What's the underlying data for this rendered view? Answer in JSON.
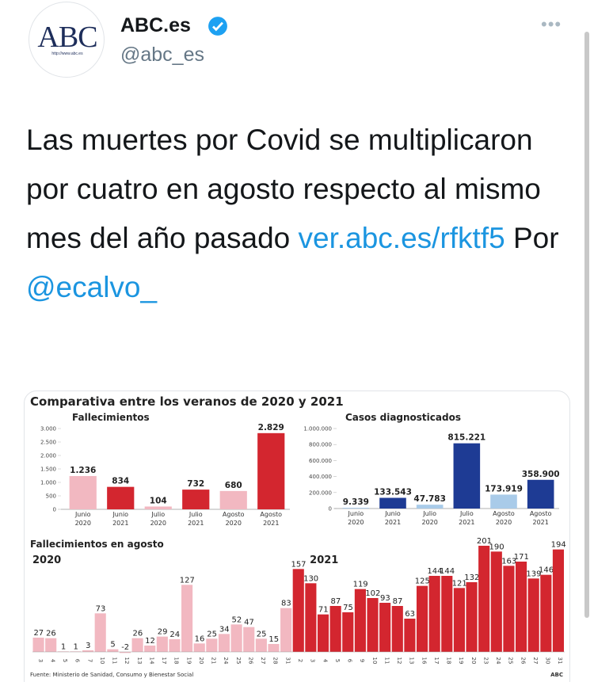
{
  "tweet": {
    "avatar_text": "ABC",
    "avatar_url": "http://www.abc.es",
    "name": "ABC.es",
    "handle": "@abc_es",
    "text": [
      "Las muertes por Covid se multiplicaron por cuatro en agosto respecto al mismo mes del año pasado ",
      "ver.abc.es/rfktf5",
      " Por ",
      "@ecalvo_"
    ]
  },
  "figure": {
    "title": "Comparativa entre los veranos de 2020 y 2021",
    "source": "Fuente: Ministerio de Sanidad, Consumo y Bienestar Social",
    "credit": "ABC"
  },
  "chart_data": [
    {
      "type": "bar",
      "title": "Fallecimientos",
      "categories": [
        "Junio 2020",
        "Junio 2021",
        "Julio 2020",
        "Julio 2021",
        "Agosto 2020",
        "Agosto 2021"
      ],
      "values": [
        1236,
        834,
        104,
        732,
        680,
        2829
      ],
      "value_labels": [
        "1.236",
        "834",
        "104",
        "732",
        "680",
        "2.829"
      ],
      "colors": [
        "#f2b8c1",
        "#d3262f",
        "#f2b8c1",
        "#d3262f",
        "#f2b8c1",
        "#d3262f"
      ],
      "ylim": [
        0,
        3000
      ],
      "yticks": [
        0,
        500,
        {
          "value": 1000,
          "label": "1.000"
        },
        {
          "value": 1500,
          "label": "1.500"
        },
        {
          "value": 2000,
          "label": "2.000"
        },
        {
          "value": 2500,
          "label": "2.500"
        },
        {
          "value": 3000,
          "label": "3.000"
        }
      ]
    },
    {
      "type": "bar",
      "title": "Casos diagnosticados",
      "categories": [
        "Junio 2020",
        "Junio 2021",
        "Julio 2020",
        "Julio 2021",
        "Agosto 2020",
        "Agosto 2021"
      ],
      "values": [
        9339,
        133543,
        47783,
        815221,
        173919,
        358900
      ],
      "value_labels": [
        "9.339",
        "133.543",
        "47.783",
        "815.221",
        "173.919",
        "358.900"
      ],
      "colors": [
        "#a9cbe9",
        "#1e3b94",
        "#a9cbe9",
        "#1e3b94",
        "#a9cbe9",
        "#1e3b94"
      ],
      "ylim": [
        0,
        1000000
      ],
      "yticks": [
        0,
        {
          "value": 200000,
          "label": "200.000"
        },
        {
          "value": 400000,
          "label": "400.000"
        },
        {
          "value": 600000,
          "label": "600.000"
        },
        {
          "value": 800000,
          "label": "800.000"
        },
        {
          "value": 1000000,
          "label": "1.000.000"
        }
      ]
    },
    {
      "type": "daily",
      "title": "Fallecimientos en agosto",
      "series": [
        {
          "name": "2020",
          "color": "#f2b8c1",
          "categories": [
            "3",
            "4",
            "5",
            "6",
            "7",
            "10",
            "11",
            "12",
            "13",
            "14",
            "17",
            "18",
            "19",
            "20",
            "21",
            "24",
            "25",
            "26",
            "27",
            "28",
            "31"
          ],
          "values": [
            27,
            26,
            1,
            1,
            3,
            73,
            5,
            -2,
            26,
            12,
            29,
            24,
            127,
            16,
            25,
            34,
            52,
            47,
            25,
            15,
            83
          ]
        },
        {
          "name": "2021",
          "color": "#d3262f",
          "categories": [
            "2",
            "3",
            "4",
            "5",
            "6",
            "9",
            "10",
            "11",
            "12",
            "13",
            "16",
            "17",
            "18",
            "19",
            "20",
            "23",
            "24",
            "25",
            "26",
            "27",
            "30",
            "31"
          ],
          "values": [
            157,
            130,
            71,
            87,
            75,
            119,
            102,
            93,
            87,
            63,
            125,
            144,
            144,
            121,
            132,
            201,
            190,
            163,
            171,
            139,
            146,
            194
          ]
        }
      ]
    }
  ]
}
